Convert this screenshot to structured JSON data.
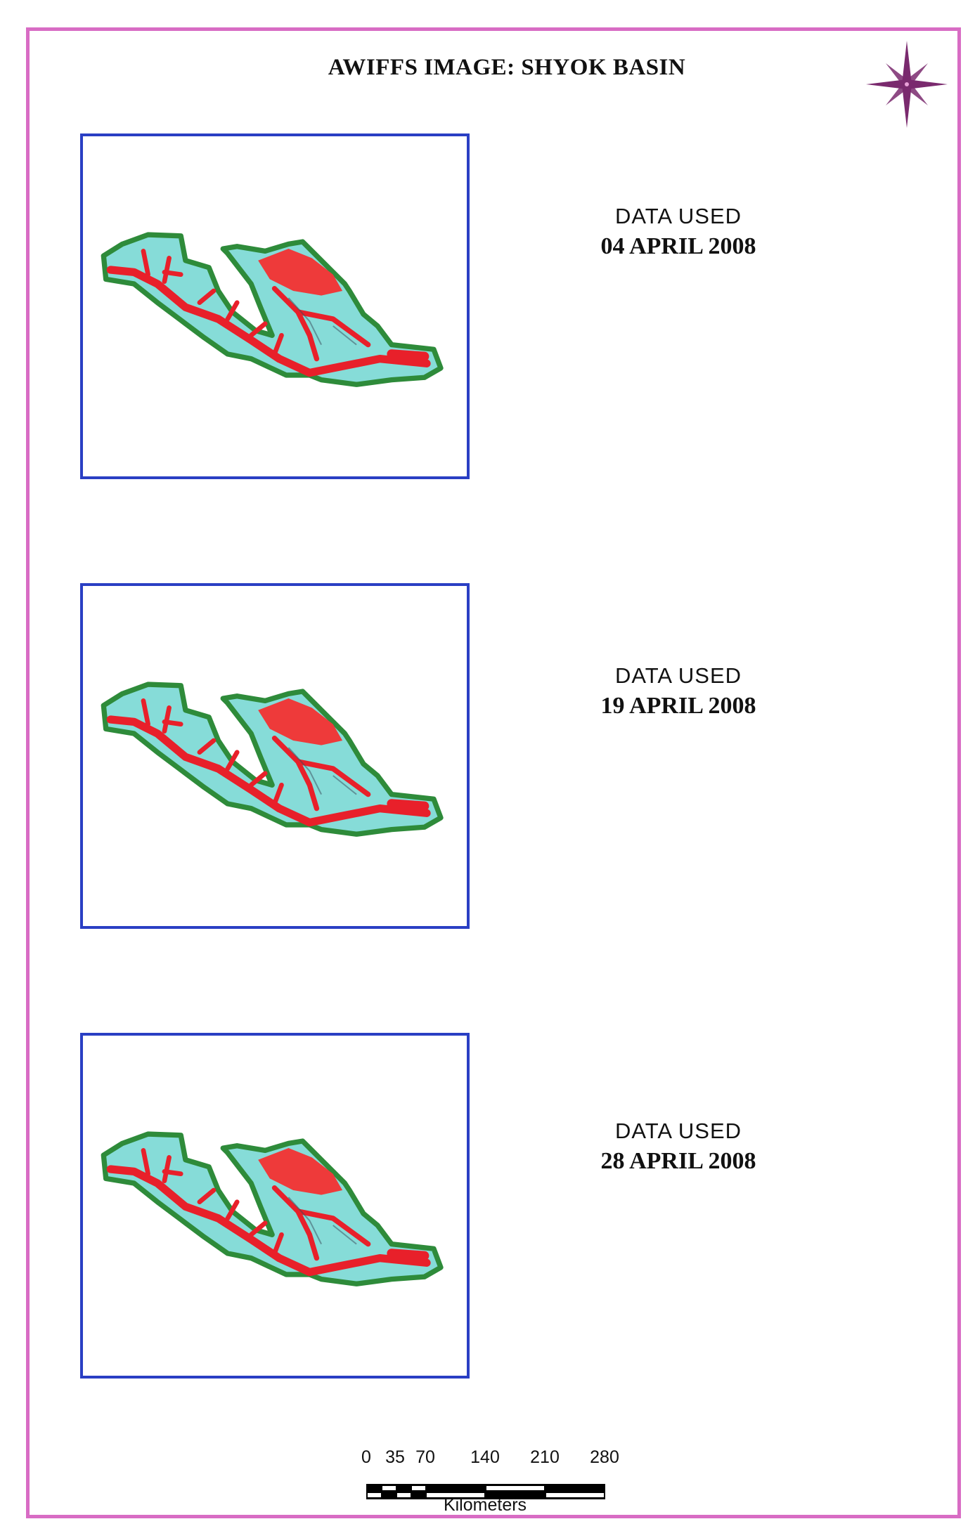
{
  "title": "AWIFFS IMAGE: SHYOK  BASIN",
  "panels": [
    {
      "label": "DATA  USED",
      "date": "04 APRIL 2008"
    },
    {
      "label": "DATA  USED",
      "date": "19 APRIL 2008"
    },
    {
      "label": "DATA  USED",
      "date": "28 APRIL 2008"
    }
  ],
  "scale_bar": {
    "ticks": [
      "0",
      "35",
      "70",
      "140",
      "210",
      "280"
    ],
    "unit": "Kilometers"
  },
  "icons": {
    "north_arrow": "compass-rose-icon"
  },
  "colors": {
    "border": "#d86cc4",
    "frame": "#2a3fc4",
    "basin_outline": "#2e8b3a",
    "snow": "#86dcd8",
    "non_snow": "#e8202a",
    "compass": "#7a2a6e"
  }
}
